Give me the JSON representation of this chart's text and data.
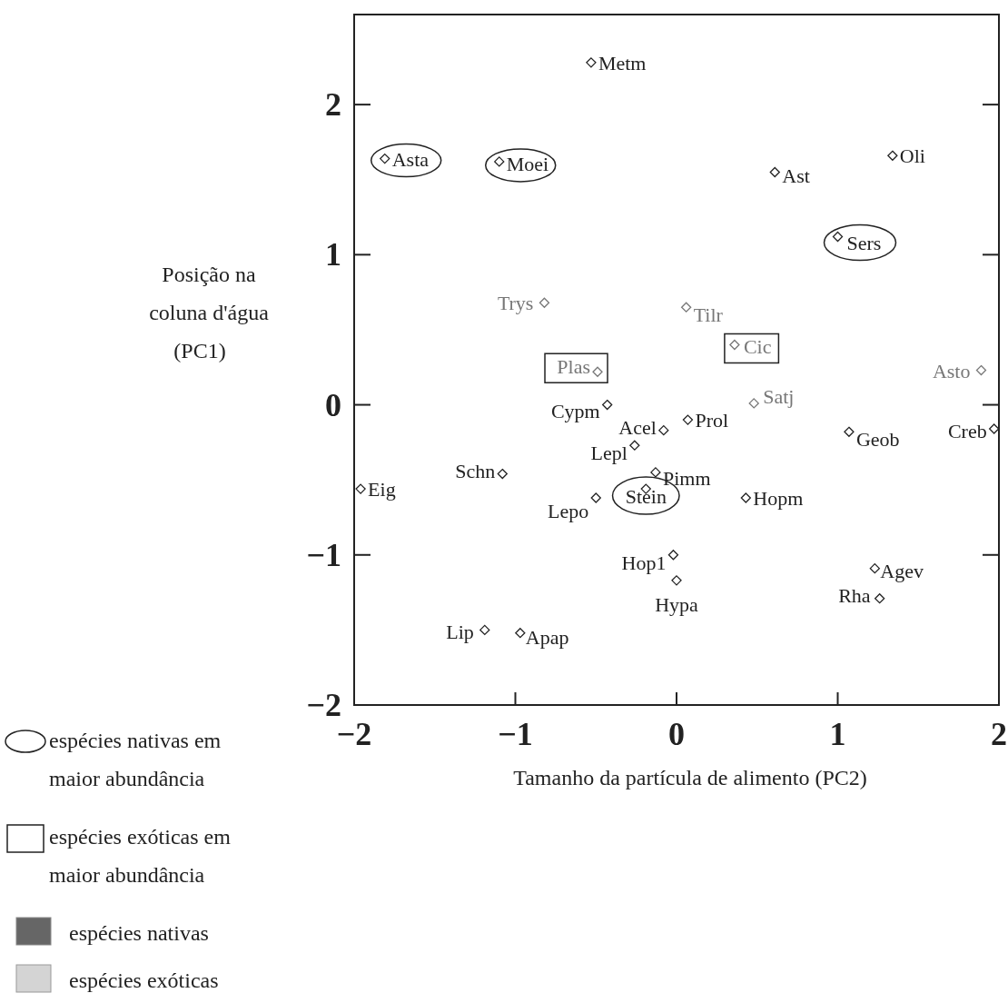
{
  "chart_data": {
    "type": "scatter",
    "xlabel": "Tamanho da partícula de alimento (PC2)",
    "ylabel": "Posição na\ncoluna d'água\n(PC1)",
    "xlim": [
      -2,
      2
    ],
    "ylim": [
      -2,
      2.6
    ],
    "xticks": [
      -2,
      -1,
      0,
      1,
      2
    ],
    "yticks": [
      -2,
      -1,
      0,
      1,
      2
    ],
    "marker": "diamond",
    "annotations": [
      "espécies nativas em maior abundância",
      "espécies exóticas em maior abundância",
      "espécies nativas",
      "espécies exóticas"
    ],
    "series": [
      {
        "color": "#222222",
        "x": [
          -1.81,
          -1.1,
          1.0,
          -0.19
        ],
        "values": [
          1.64,
          1.62,
          1.12,
          -0.56
        ],
        "value_labels": [
          "Asta",
          "Moei",
          "Sers",
          "Stein"
        ]
      },
      {
        "color": "#777777",
        "x": [
          -0.49,
          0.36
        ],
        "values": [
          0.22,
          0.4
        ],
        "value_labels": [
          "Plas",
          "Cic"
        ]
      },
      {
        "color": "#222222",
        "x": [
          -0.53,
          0.61,
          1.34,
          -0.43,
          -0.08,
          0.07,
          1.07,
          1.97,
          -0.26,
          -1.08,
          -1.96,
          -0.13,
          -0.5,
          0.43,
          -0.02,
          0.0,
          1.23,
          1.26,
          -1.19,
          -0.97
        ],
        "values": [
          2.28,
          1.55,
          1.66,
          0.0,
          -0.17,
          -0.1,
          -0.18,
          -0.16,
          -0.27,
          -0.46,
          -0.56,
          -0.45,
          -0.62,
          -0.62,
          -1.0,
          -1.17,
          -1.09,
          -1.29,
          -1.5,
          -1.52
        ],
        "value_labels": [
          "Metm",
          "Ast",
          "Oli",
          "Cypm",
          "Acel",
          "Prol",
          "Geob",
          "Creb",
          "Lepl",
          "Schn",
          "Eig",
          "Pimm",
          "Lepo",
          "Hopm",
          "Hop1",
          "Hypa",
          "Agev",
          "Rha",
          "Lip",
          "Apap"
        ]
      },
      {
        "color": "#777777",
        "x": [
          -0.82,
          0.06,
          0.48,
          1.89
        ],
        "values": [
          0.68,
          0.65,
          0.01,
          0.23
        ],
        "value_labels": [
          "Trys",
          "Tilr",
          "Satj",
          "Asto"
        ]
      }
    ]
  }
}
